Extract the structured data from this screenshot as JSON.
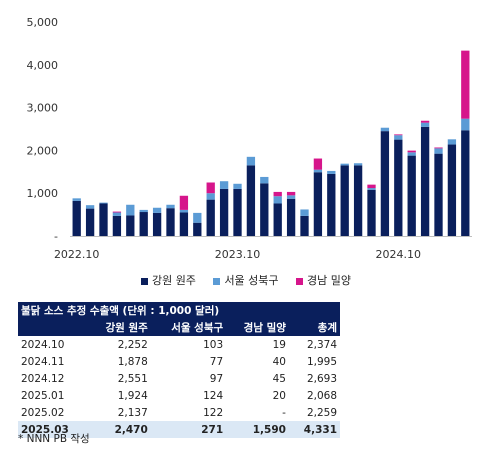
{
  "chart_data": {
    "type": "bar",
    "stacked": true,
    "ylim": [
      0,
      5000
    ],
    "yticks": [
      0,
      1000,
      2000,
      3000,
      4000,
      5000
    ],
    "ytick_labels": [
      "-",
      "1,000",
      "2,000",
      "3,000",
      "4,000",
      "5,000"
    ],
    "xtick_labels": [
      {
        "label": "2022.10",
        "index": 0
      },
      {
        "label": "2023.10",
        "index": 12
      },
      {
        "label": "2024.10",
        "index": 24
      }
    ],
    "categories": [
      "2022.10",
      "2022.11",
      "2022.12",
      "2023.01",
      "2023.02",
      "2023.03",
      "2023.04",
      "2023.05",
      "2023.06",
      "2023.07",
      "2023.08",
      "2023.09",
      "2023.10",
      "2023.11",
      "2023.12",
      "2024.01",
      "2024.02",
      "2024.03",
      "2024.04",
      "2024.05",
      "2024.06",
      "2024.07",
      "2024.08",
      "2024.09",
      "2024.10",
      "2024.11",
      "2024.12",
      "2025.01",
      "2025.02",
      "2025.03"
    ],
    "series": [
      {
        "name": "강원 원주",
        "color": "#0a1f5c",
        "values": [
          820,
          640,
          760,
          470,
          480,
          560,
          540,
          650,
          550,
          310,
          850,
          1100,
          1100,
          1650,
          1230,
          760,
          870,
          470,
          1490,
          1450,
          1650,
          1650,
          1080,
          2450,
          2252,
          1878,
          2551,
          1924,
          2137,
          2470
        ]
      },
      {
        "name": "서울 성북구",
        "color": "#5b9bd5",
        "values": [
          60,
          80,
          20,
          80,
          250,
          50,
          120,
          80,
          60,
          230,
          150,
          180,
          120,
          200,
          150,
          170,
          80,
          150,
          60,
          70,
          40,
          50,
          40,
          80,
          103,
          77,
          97,
          124,
          122,
          271
        ]
      },
      {
        "name": "경남 밀양",
        "color": "#d6158b",
        "values": [
          0,
          0,
          0,
          20,
          0,
          0,
          0,
          0,
          330,
          0,
          250,
          0,
          0,
          0,
          0,
          100,
          80,
          0,
          260,
          0,
          0,
          0,
          80,
          0,
          19,
          40,
          45,
          20,
          0,
          1590
        ]
      }
    ]
  },
  "legend": {
    "items": [
      {
        "label": "강원 원주",
        "color": "#0a1f5c"
      },
      {
        "label": "서울 성북구",
        "color": "#5b9bd5"
      },
      {
        "label": "경남 밀양",
        "color": "#d6158b"
      }
    ]
  },
  "table": {
    "caption": "불닭 소스 추정 수출액 (단위 : 1,000 달러)",
    "headers": [
      "",
      "강원 원주",
      "서울 성북구",
      "경남 밀양",
      "총계"
    ],
    "rows": [
      [
        "2024.10",
        "2,252",
        "103",
        "19",
        "2,374"
      ],
      [
        "2024.11",
        "1,878",
        "77",
        "40",
        "1,995"
      ],
      [
        "2024.12",
        "2,551",
        "97",
        "45",
        "2,693"
      ],
      [
        "2025.01",
        "1,924",
        "124",
        "20",
        "2,068"
      ],
      [
        "2025.02",
        "2,137",
        "122",
        "-",
        "2,259"
      ],
      [
        "2025.03",
        "2,470",
        "271",
        "1,590",
        "4,331"
      ]
    ]
  },
  "note": "* NNN PB 작성"
}
